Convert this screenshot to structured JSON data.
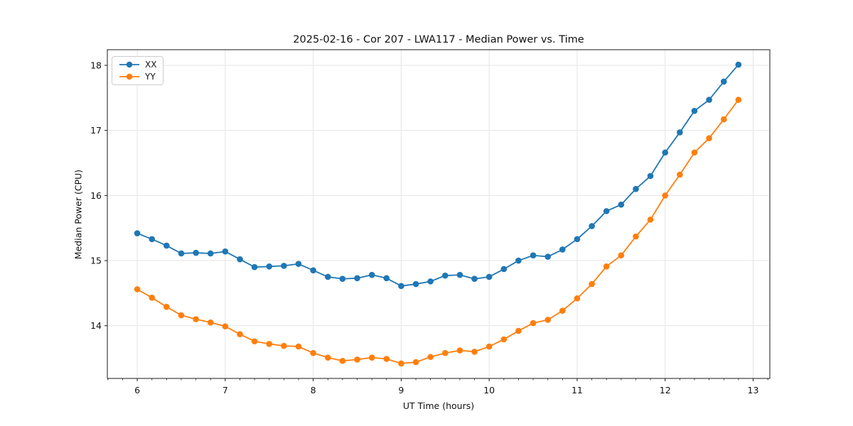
{
  "chart_data": {
    "type": "line",
    "title": "2025-02-16 - Cor 207 - LWA117 - Median Power vs. Time",
    "xlabel": "UT Time (hours)",
    "ylabel": "Median Power (CPU)",
    "x": [
      6.0,
      6.167,
      6.333,
      6.5,
      6.667,
      6.833,
      7.0,
      7.167,
      7.333,
      7.5,
      7.667,
      7.833,
      8.0,
      8.167,
      8.333,
      8.5,
      8.667,
      8.833,
      9.0,
      9.167,
      9.333,
      9.5,
      9.667,
      9.833,
      10.0,
      10.167,
      10.333,
      10.5,
      10.667,
      10.833,
      11.0,
      11.167,
      11.333,
      11.5,
      11.667,
      11.833,
      12.0,
      12.167,
      12.333,
      12.5,
      12.667,
      12.833
    ],
    "series": [
      {
        "name": "XX",
        "color": "#1f77b4",
        "values": [
          15.42,
          15.33,
          15.23,
          15.11,
          15.12,
          15.11,
          15.14,
          15.02,
          14.9,
          14.91,
          14.92,
          14.95,
          14.85,
          14.75,
          14.72,
          14.73,
          14.78,
          14.73,
          14.61,
          14.64,
          14.68,
          14.77,
          14.78,
          14.72,
          14.75,
          14.87,
          15.0,
          15.08,
          15.06,
          15.17,
          15.33,
          15.53,
          15.76,
          15.86,
          16.1,
          16.3,
          16.66,
          16.97,
          17.3,
          17.47,
          17.75,
          18.01
        ]
      },
      {
        "name": "YY",
        "color": "#ff7f0e",
        "values": [
          14.56,
          14.43,
          14.29,
          14.16,
          14.1,
          14.05,
          13.99,
          13.87,
          13.76,
          13.72,
          13.69,
          13.68,
          13.58,
          13.51,
          13.46,
          13.48,
          13.51,
          13.49,
          13.42,
          13.44,
          13.52,
          13.58,
          13.62,
          13.6,
          13.68,
          13.79,
          13.92,
          14.04,
          14.09,
          14.23,
          14.42,
          14.64,
          14.91,
          15.08,
          15.37,
          15.63,
          16.0,
          16.32,
          16.66,
          16.88,
          17.17,
          17.47
        ]
      }
    ],
    "x_ticks": [
      6,
      7,
      8,
      9,
      10,
      11,
      12,
      13
    ],
    "y_ticks": [
      14,
      15,
      16,
      17,
      18
    ],
    "x_minor_tick_step": 0.16667,
    "xlim": [
      5.66,
      13.19
    ],
    "ylim": [
      13.19,
      18.24
    ],
    "grid": true,
    "grid_color": "#e6e6e6",
    "legend_position": "upper left",
    "marker": "circle",
    "background": "#ffffff"
  }
}
